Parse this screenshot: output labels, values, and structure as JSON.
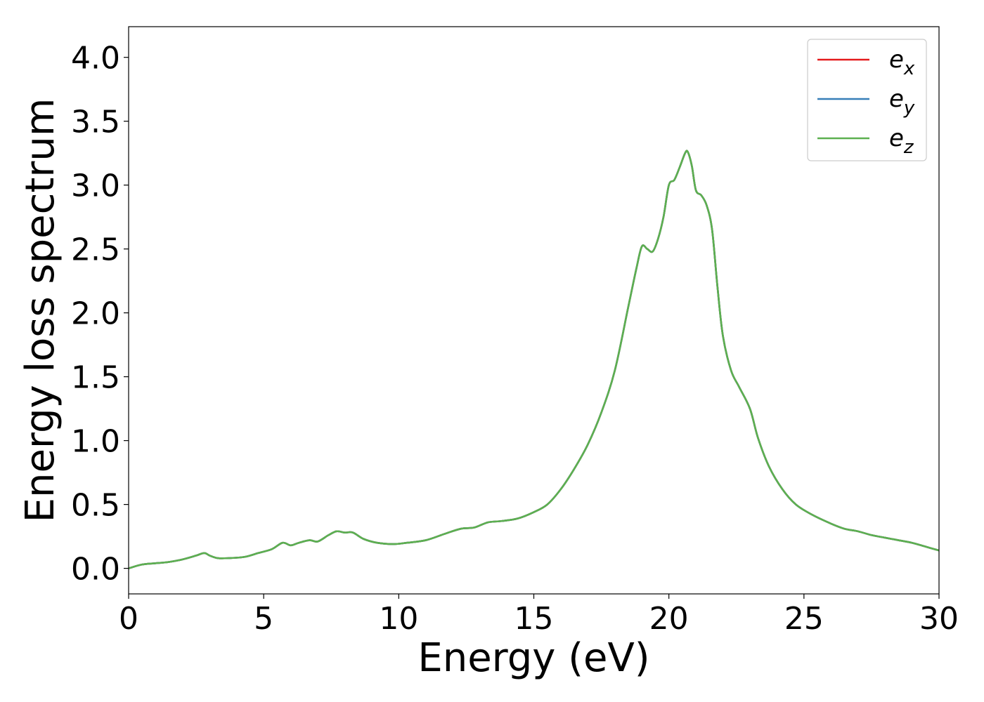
{
  "chart_data": {
    "type": "line",
    "title": "",
    "xlabel": "Energy (eV)",
    "ylabel": "Energy loss spectrum",
    "xlim": [
      0,
      30
    ],
    "ylim": [
      -0.2,
      4.24
    ],
    "xticks": [
      0,
      5,
      10,
      15,
      20,
      25,
      30
    ],
    "xtick_labels": [
      "0",
      "5",
      "10",
      "15",
      "20",
      "25",
      "30"
    ],
    "yticks": [
      0.0,
      0.5,
      1.0,
      1.5,
      2.0,
      2.5,
      3.0,
      3.5,
      4.0
    ],
    "ytick_labels": [
      "0.0",
      "0.5",
      "1.0",
      "1.5",
      "2.0",
      "2.5",
      "3.0",
      "3.5",
      "4.0"
    ],
    "grid": false,
    "legend_position": "top-right",
    "x": [
      0,
      0.5,
      1.0,
      1.5,
      2.0,
      2.5,
      2.8,
      3.0,
      3.3,
      3.7,
      4.3,
      4.8,
      5.3,
      5.7,
      6.0,
      6.3,
      6.7,
      7.0,
      7.4,
      7.7,
      8.0,
      8.3,
      8.7,
      9.2,
      9.8,
      10.3,
      11.0,
      11.7,
      12.3,
      12.8,
      13.3,
      13.8,
      14.4,
      15.0,
      15.5,
      16.0,
      16.5,
      17.0,
      17.5,
      18.0,
      18.5,
      18.8,
      19.0,
      19.2,
      19.4,
      19.6,
      19.8,
      20.0,
      20.2,
      20.4,
      20.6,
      20.7,
      20.85,
      21.0,
      21.2,
      21.4,
      21.6,
      21.8,
      22.0,
      22.3,
      22.6,
      23.0,
      23.3,
      23.7,
      24.2,
      24.7,
      25.3,
      26.0,
      26.5,
      27.0,
      27.5,
      28.0,
      28.5,
      29.0,
      29.5,
      30.0
    ],
    "series": [
      {
        "name": "e_x",
        "color": "#e41a1c",
        "values": [
          0.0,
          0.03,
          0.04,
          0.05,
          0.07,
          0.1,
          0.12,
          0.1,
          0.08,
          0.08,
          0.09,
          0.12,
          0.15,
          0.2,
          0.18,
          0.2,
          0.22,
          0.21,
          0.26,
          0.29,
          0.28,
          0.28,
          0.23,
          0.2,
          0.19,
          0.2,
          0.22,
          0.27,
          0.31,
          0.32,
          0.36,
          0.37,
          0.39,
          0.44,
          0.5,
          0.62,
          0.78,
          0.97,
          1.22,
          1.55,
          2.05,
          2.35,
          2.52,
          2.5,
          2.48,
          2.58,
          2.75,
          3.0,
          3.04,
          3.14,
          3.25,
          3.26,
          3.15,
          2.96,
          2.92,
          2.84,
          2.65,
          2.2,
          1.82,
          1.55,
          1.42,
          1.25,
          1.02,
          0.8,
          0.62,
          0.5,
          0.42,
          0.35,
          0.31,
          0.29,
          0.26,
          0.24,
          0.22,
          0.2,
          0.17,
          0.14
        ]
      },
      {
        "name": "e_y",
        "color": "#377eb8",
        "values": [
          0.0,
          0.03,
          0.04,
          0.05,
          0.07,
          0.1,
          0.12,
          0.1,
          0.08,
          0.08,
          0.09,
          0.12,
          0.15,
          0.2,
          0.18,
          0.2,
          0.22,
          0.21,
          0.26,
          0.29,
          0.28,
          0.28,
          0.23,
          0.2,
          0.19,
          0.2,
          0.22,
          0.27,
          0.31,
          0.32,
          0.36,
          0.37,
          0.39,
          0.44,
          0.5,
          0.62,
          0.78,
          0.97,
          1.22,
          1.55,
          2.05,
          2.35,
          2.52,
          2.5,
          2.48,
          2.58,
          2.75,
          3.0,
          3.04,
          3.14,
          3.25,
          3.26,
          3.15,
          2.96,
          2.92,
          2.84,
          2.65,
          2.2,
          1.82,
          1.55,
          1.42,
          1.25,
          1.02,
          0.8,
          0.62,
          0.5,
          0.42,
          0.35,
          0.31,
          0.29,
          0.26,
          0.24,
          0.22,
          0.2,
          0.17,
          0.14
        ]
      },
      {
        "name": "e_z",
        "color": "#5cb050",
        "values": [
          0.0,
          0.03,
          0.04,
          0.05,
          0.07,
          0.1,
          0.12,
          0.1,
          0.08,
          0.08,
          0.09,
          0.12,
          0.15,
          0.2,
          0.18,
          0.2,
          0.22,
          0.21,
          0.26,
          0.29,
          0.28,
          0.28,
          0.23,
          0.2,
          0.19,
          0.2,
          0.22,
          0.27,
          0.31,
          0.32,
          0.36,
          0.37,
          0.39,
          0.44,
          0.5,
          0.62,
          0.78,
          0.97,
          1.22,
          1.55,
          2.05,
          2.35,
          2.52,
          2.5,
          2.48,
          2.58,
          2.75,
          3.0,
          3.04,
          3.14,
          3.25,
          3.26,
          3.15,
          2.96,
          2.92,
          2.84,
          2.65,
          2.2,
          1.82,
          1.55,
          1.42,
          1.25,
          1.02,
          0.8,
          0.62,
          0.5,
          0.42,
          0.35,
          0.31,
          0.29,
          0.26,
          0.24,
          0.22,
          0.2,
          0.17,
          0.14
        ]
      }
    ],
    "legend": [
      {
        "base": "e",
        "sub": "x"
      },
      {
        "base": "e",
        "sub": "y"
      },
      {
        "base": "e",
        "sub": "z"
      }
    ]
  }
}
